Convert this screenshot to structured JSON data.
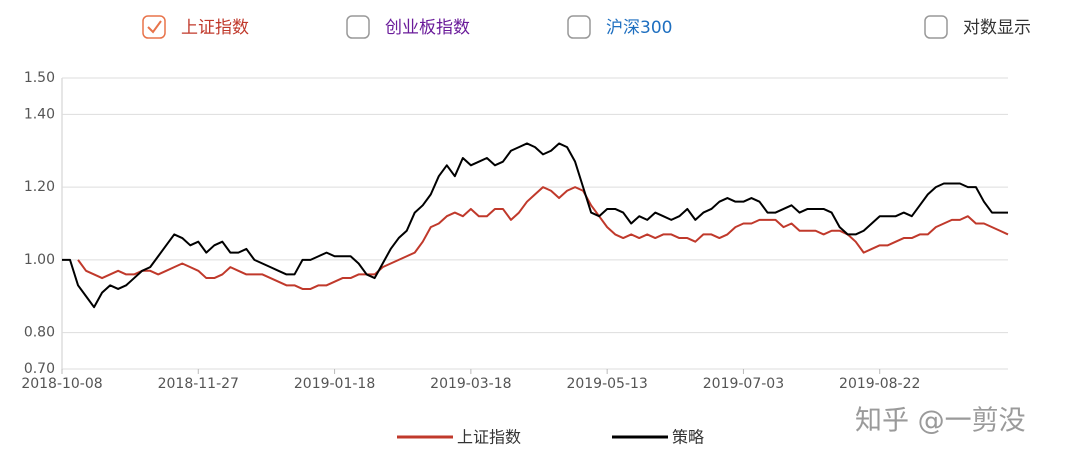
{
  "chart_data": {
    "type": "line",
    "toggles": [
      {
        "label": "上证指数",
        "checked": true,
        "color": "#c0392b"
      },
      {
        "label": "创业板指数",
        "checked": false,
        "color": "#6a1b9a"
      },
      {
        "label": "沪深300",
        "checked": false,
        "color": "#1e6fc0"
      },
      {
        "label": "对数显示",
        "checked": false,
        "color": "#333333"
      }
    ],
    "categories": [
      "2018-10-08",
      null,
      null,
      null,
      null,
      null,
      null,
      null,
      null,
      null,
      null,
      null,
      null,
      null,
      null,
      null,
      null,
      "2018-11-27",
      null,
      null,
      null,
      null,
      null,
      null,
      null,
      null,
      null,
      null,
      null,
      null,
      null,
      null,
      null,
      null,
      "2019-01-18",
      null,
      null,
      null,
      null,
      null,
      null,
      null,
      null,
      null,
      null,
      null,
      null,
      null,
      null,
      null,
      null,
      "2019-03-18",
      null,
      null,
      null,
      null,
      null,
      null,
      null,
      null,
      null,
      null,
      null,
      null,
      null,
      null,
      null,
      null,
      "2019-05-13",
      null,
      null,
      null,
      null,
      null,
      null,
      null,
      null,
      null,
      null,
      null,
      null,
      null,
      null,
      null,
      null,
      "2019-07-03",
      null,
      null,
      null,
      null,
      null,
      null,
      null,
      null,
      null,
      null,
      null,
      null,
      null,
      null,
      null,
      null,
      "2019-08-22",
      null,
      null,
      null,
      null,
      null,
      null,
      null,
      null,
      null,
      null,
      null,
      null,
      null,
      null,
      null,
      null
    ],
    "series": [
      {
        "name": "上证指数",
        "color": "#c0392b",
        "values": [
          null,
          null,
          1.0,
          0.97,
          0.96,
          0.95,
          0.96,
          0.97,
          0.96,
          0.96,
          0.97,
          0.97,
          0.96,
          0.97,
          0.98,
          0.99,
          0.98,
          0.97,
          0.95,
          0.95,
          0.96,
          0.98,
          0.97,
          0.96,
          0.96,
          0.96,
          0.95,
          0.94,
          0.93,
          0.93,
          0.92,
          0.92,
          0.93,
          0.93,
          0.94,
          0.95,
          0.95,
          0.96,
          0.96,
          0.96,
          0.98,
          0.99,
          1.0,
          1.01,
          1.02,
          1.05,
          1.09,
          1.1,
          1.12,
          1.13,
          1.12,
          1.14,
          1.12,
          1.12,
          1.14,
          1.14,
          1.11,
          1.13,
          1.16,
          1.18,
          1.2,
          1.19,
          1.17,
          1.19,
          1.2,
          1.19,
          1.15,
          1.12,
          1.09,
          1.07,
          1.06,
          1.07,
          1.06,
          1.07,
          1.06,
          1.07,
          1.07,
          1.06,
          1.06,
          1.05,
          1.07,
          1.07,
          1.06,
          1.07,
          1.09,
          1.1,
          1.1,
          1.11,
          1.11,
          1.11,
          1.09,
          1.1,
          1.08,
          1.08,
          1.08,
          1.07,
          1.08,
          1.08,
          1.07,
          1.05,
          1.02,
          1.03,
          1.04,
          1.04,
          1.05,
          1.06,
          1.06,
          1.07,
          1.07,
          1.09,
          1.1,
          1.11,
          1.11,
          1.12,
          1.1,
          1.1,
          1.09,
          1.08,
          1.07
        ]
      },
      {
        "name": "策略",
        "color": "#000000",
        "values": [
          1.0,
          1.0,
          0.93,
          0.9,
          0.87,
          0.91,
          0.93,
          0.92,
          0.93,
          0.95,
          0.97,
          0.98,
          1.01,
          1.04,
          1.07,
          1.06,
          1.04,
          1.05,
          1.02,
          1.04,
          1.05,
          1.02,
          1.02,
          1.03,
          1.0,
          0.99,
          0.98,
          0.97,
          0.96,
          0.96,
          1.0,
          1.0,
          1.01,
          1.02,
          1.01,
          1.01,
          1.01,
          0.99,
          0.96,
          0.95,
          0.99,
          1.03,
          1.06,
          1.08,
          1.13,
          1.15,
          1.18,
          1.23,
          1.26,
          1.23,
          1.28,
          1.26,
          1.27,
          1.28,
          1.26,
          1.27,
          1.3,
          1.31,
          1.32,
          1.31,
          1.29,
          1.3,
          1.32,
          1.31,
          1.27,
          1.2,
          1.13,
          1.12,
          1.14,
          1.14,
          1.13,
          1.1,
          1.12,
          1.11,
          1.13,
          1.12,
          1.11,
          1.12,
          1.14,
          1.11,
          1.13,
          1.14,
          1.16,
          1.17,
          1.16,
          1.16,
          1.17,
          1.16,
          1.13,
          1.13,
          1.14,
          1.15,
          1.13,
          1.14,
          1.14,
          1.14,
          1.13,
          1.09,
          1.07,
          1.07,
          1.08,
          1.1,
          1.12,
          1.12,
          1.12,
          1.13,
          1.12,
          1.15,
          1.18,
          1.2,
          1.21,
          1.21,
          1.21,
          1.2,
          1.2,
          1.16,
          1.13,
          1.13,
          1.13
        ]
      }
    ],
    "ylim": [
      0.7,
      1.5
    ],
    "yticks": [
      {
        "value": 0.7,
        "label": "0.70"
      },
      {
        "value": 0.8,
        "label": "0.80"
      },
      {
        "value": 1.0,
        "label": "1.00"
      },
      {
        "value": 1.2,
        "label": "1.20"
      },
      {
        "value": 1.4,
        "label": "1.40"
      },
      {
        "value": 1.5,
        "label": "1.50"
      }
    ],
    "grid": true,
    "legend": "bottom",
    "watermark": "知乎 @一剪没"
  }
}
